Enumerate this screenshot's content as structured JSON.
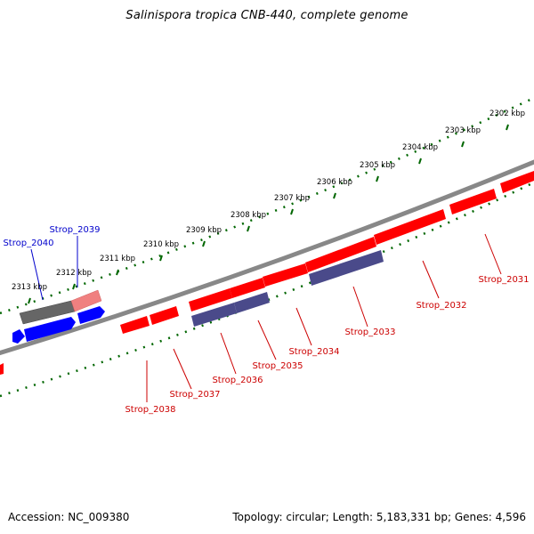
{
  "header": {
    "title": "Salinispora tropica CNB-440, complete genome"
  },
  "footer": {
    "accession": "Accession: NC_009380",
    "summary": "Topology: circular; Length: 5,183,331 bp; Genes: 4,596"
  },
  "map": {
    "ticks": [
      {
        "label": "2302 kbp"
      },
      {
        "label": "2303 kbp"
      },
      {
        "label": "2304 kbp"
      },
      {
        "label": "2305 kbp"
      },
      {
        "label": "2306 kbp"
      },
      {
        "label": "2307 kbp"
      },
      {
        "label": "2308 kbp"
      },
      {
        "label": "2309 kbp"
      },
      {
        "label": "2310 kbp"
      },
      {
        "label": "2311 kbp"
      },
      {
        "label": "2312 kbp"
      },
      {
        "label": "2313 kbp"
      }
    ],
    "genes_top": [
      {
        "label": "Strop_2039",
        "color": "#0000cc"
      },
      {
        "label": "Strop_2040",
        "color": "#0000cc"
      }
    ],
    "genes_bottom": [
      {
        "label": "Strop_2031",
        "color": "#cc0000"
      },
      {
        "label": "Strop_2032",
        "color": "#cc0000"
      },
      {
        "label": "Strop_2033",
        "color": "#cc0000"
      },
      {
        "label": "Strop_2034",
        "color": "#cc0000"
      },
      {
        "label": "Strop_2035",
        "color": "#cc0000"
      },
      {
        "label": "Strop_2036",
        "color": "#cc0000"
      },
      {
        "label": "Strop_2037",
        "color": "#cc0000"
      },
      {
        "label": "Strop_2038",
        "color": "#cc0000"
      }
    ],
    "colors": {
      "forward_gene": "#0000ff",
      "reverse_gene": "#ff0000",
      "rrna_gene": "#4a4a8a",
      "pseudo_gene": "#666666",
      "backbone": "#888888",
      "ticks": "#006600"
    }
  }
}
